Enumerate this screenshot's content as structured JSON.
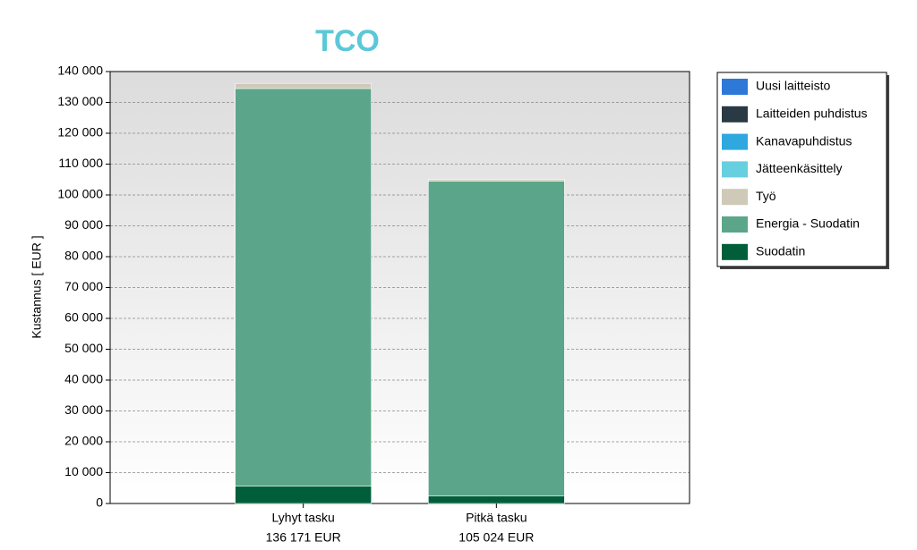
{
  "chart_data": {
    "type": "stacked-bar",
    "title": "TCO",
    "y_label": "Kustannus [ EUR ]",
    "categories": [
      "Lyhyt tasku",
      "Pitkä tasku"
    ],
    "category_totals": {
      "values": [
        136171,
        105024
      ],
      "value_labels": [
        "136 171 EUR",
        "105 024 EUR"
      ]
    },
    "series": [
      {
        "name": "Suodatin",
        "color": "#005f3a",
        "values": [
          5600,
          2500
        ]
      },
      {
        "name": "Energia - Suodatin",
        "color": "#5ba68a",
        "values": [
          128900,
          102000
        ]
      },
      {
        "name": "Työ",
        "color": "#cfc9b8",
        "values": [
          1671,
          524
        ]
      },
      {
        "name": "Jätteenkäsittely",
        "color": "#66cfe0",
        "values": [
          0,
          0
        ]
      },
      {
        "name": "Kanavapuhdistus",
        "color": "#2fa8e0",
        "values": [
          0,
          0
        ]
      },
      {
        "name": "Laitteiden puhdistus",
        "color": "#2a3a44",
        "values": [
          0,
          0
        ]
      },
      {
        "name": "Uusi laitteisto",
        "color": "#2e78d8",
        "values": [
          0,
          0
        ]
      }
    ],
    "ylim": [
      0,
      140000
    ],
    "yticks": [
      0,
      {
        "value": 10000,
        "label": "10 000"
      },
      {
        "value": 20000,
        "label": "20 000"
      },
      {
        "value": 30000,
        "label": "30 000"
      },
      {
        "value": 40000,
        "label": "40 000"
      },
      {
        "value": 50000,
        "label": "50 000"
      },
      {
        "value": 60000,
        "label": "60 000"
      },
      {
        "value": 70000,
        "label": "70 000"
      },
      {
        "value": 80000,
        "label": "80 000"
      },
      {
        "value": 90000,
        "label": "90 000"
      },
      {
        "value": 100000,
        "label": "100 000"
      },
      {
        "value": 110000,
        "label": "110 000"
      },
      {
        "value": 120000,
        "label": "120 000"
      },
      {
        "value": 130000,
        "label": "130 000"
      },
      {
        "value": 140000,
        "label": "140 000"
      }
    ],
    "grid": true,
    "legend": "right",
    "legend_order": "reversed"
  }
}
